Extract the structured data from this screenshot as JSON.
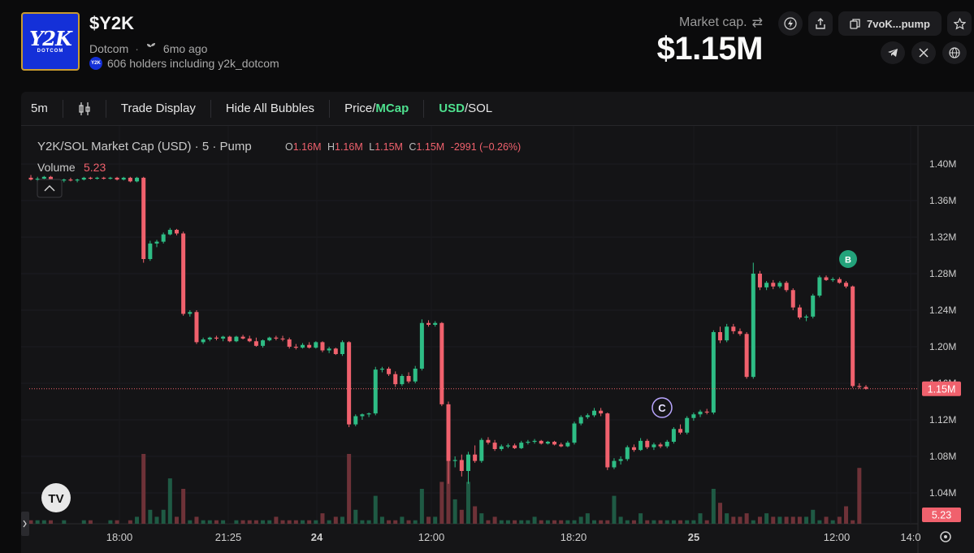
{
  "token": {
    "logo_text": "Y2K",
    "logo_subtext": "DOTCOM",
    "ticker": "$Y2K",
    "name": "Dotcom",
    "age": "6mo ago",
    "holders_text": "606 holders including y2k_dotcom"
  },
  "market": {
    "label": "Market cap.",
    "value": "$1.15M",
    "address": "7voK...pump"
  },
  "toolbar": {
    "interval": "5m",
    "trade_display": "Trade Display",
    "hide_bubbles": "Hide All Bubbles",
    "price_label": "Price",
    "mcap_label": "MCap",
    "usd_label": "USD",
    "sol_label": "SOL"
  },
  "legend": {
    "title": "Y2K/SOL Market Cap (USD) · 5 · Pump",
    "o_label": "O",
    "o_value": "1.16M",
    "h_label": "H",
    "h_value": "1.16M",
    "l_label": "L",
    "l_value": "1.15M",
    "c_label": "C",
    "c_value": "1.15M",
    "change": "-2991 (−0.26%)",
    "volume_label": "Volume",
    "volume_value": "5.23"
  },
  "colors": {
    "up": "#2ebd85",
    "down": "#f0616d",
    "accent_green": "#4ee08e"
  },
  "chart_data": {
    "type": "candlestick",
    "y_ticks": [
      "1.40M",
      "1.36M",
      "1.32M",
      "1.28M",
      "1.24M",
      "1.20M",
      "1.16M",
      "1.12M",
      "1.08M",
      "1.04M"
    ],
    "y_range_millions": [
      1.0,
      1.42
    ],
    "x_ticks": [
      "18:00",
      "21:25",
      "24",
      "12:00",
      "18:20",
      "25",
      "12:00",
      "14:0"
    ],
    "current_price_label": "1.15M",
    "current_volume_label": "5.23",
    "markers": [
      {
        "label": "C",
        "near_value_millions": 1.13
      },
      {
        "label": "B",
        "near_value_millions": 1.3
      }
    ],
    "candles_millions": [
      [
        1.385,
        1.388,
        1.382,
        1.383
      ],
      [
        1.383,
        1.386,
        1.38,
        1.384
      ],
      [
        1.384,
        1.387,
        1.383,
        1.386
      ],
      [
        1.386,
        1.387,
        1.38,
        1.38
      ],
      [
        1.38,
        1.383,
        1.378,
        1.382
      ],
      [
        1.382,
        1.384,
        1.38,
        1.383
      ],
      [
        1.383,
        1.385,
        1.381,
        1.382
      ],
      [
        1.382,
        1.384,
        1.38,
        1.383
      ],
      [
        1.383,
        1.386,
        1.382,
        1.385
      ],
      [
        1.385,
        1.386,
        1.383,
        1.384
      ],
      [
        1.384,
        1.386,
        1.383,
        1.385
      ],
      [
        1.385,
        1.386,
        1.383,
        1.384
      ],
      [
        1.384,
        1.386,
        1.383,
        1.385
      ],
      [
        1.385,
        1.386,
        1.382,
        1.383
      ],
      [
        1.383,
        1.386,
        1.382,
        1.385
      ],
      [
        1.385,
        1.386,
        1.38,
        1.381
      ],
      [
        1.381,
        1.386,
        1.38,
        1.385
      ],
      [
        1.385,
        1.386,
        1.292,
        1.296
      ],
      [
        1.296,
        1.316,
        1.294,
        1.313
      ],
      [
        1.313,
        1.317,
        1.309,
        1.315
      ],
      [
        1.315,
        1.325,
        1.313,
        1.323
      ],
      [
        1.323,
        1.33,
        1.322,
        1.328
      ],
      [
        1.328,
        1.329,
        1.322,
        1.324
      ],
      [
        1.324,
        1.326,
        1.234,
        1.236
      ],
      [
        1.236,
        1.24,
        1.233,
        1.238
      ],
      [
        1.238,
        1.24,
        1.203,
        1.205
      ],
      [
        1.205,
        1.21,
        1.203,
        1.208
      ],
      [
        1.208,
        1.211,
        1.206,
        1.21
      ],
      [
        1.21,
        1.212,
        1.207,
        1.209
      ],
      [
        1.209,
        1.212,
        1.206,
        1.211
      ],
      [
        1.211,
        1.212,
        1.205,
        1.206
      ],
      [
        1.206,
        1.212,
        1.205,
        1.211
      ],
      [
        1.211,
        1.213,
        1.208,
        1.209
      ],
      [
        1.209,
        1.212,
        1.205,
        1.206
      ],
      [
        1.206,
        1.21,
        1.2,
        1.201
      ],
      [
        1.201,
        1.208,
        1.199,
        1.207
      ],
      [
        1.207,
        1.211,
        1.206,
        1.21
      ],
      [
        1.21,
        1.212,
        1.207,
        1.209
      ],
      [
        1.209,
        1.212,
        1.206,
        1.208
      ],
      [
        1.208,
        1.21,
        1.198,
        1.2
      ],
      [
        1.2,
        1.203,
        1.197,
        1.199
      ],
      [
        1.199,
        1.204,
        1.198,
        1.202
      ],
      [
        1.202,
        1.205,
        1.198,
        1.199
      ],
      [
        1.199,
        1.206,
        1.198,
        1.205
      ],
      [
        1.205,
        1.206,
        1.194,
        1.196
      ],
      [
        1.196,
        1.2,
        1.193,
        1.198
      ],
      [
        1.198,
        1.199,
        1.191,
        1.192
      ],
      [
        1.192,
        1.207,
        1.19,
        1.205
      ],
      [
        1.205,
        1.206,
        1.112,
        1.115
      ],
      [
        1.115,
        1.126,
        1.113,
        1.124
      ],
      [
        1.124,
        1.127,
        1.12,
        1.126
      ],
      [
        1.126,
        1.128,
        1.123,
        1.127
      ],
      [
        1.127,
        1.178,
        1.125,
        1.175
      ],
      [
        1.175,
        1.178,
        1.172,
        1.176
      ],
      [
        1.176,
        1.178,
        1.168,
        1.17
      ],
      [
        1.17,
        1.173,
        1.156,
        1.159
      ],
      [
        1.159,
        1.17,
        1.157,
        1.168
      ],
      [
        1.168,
        1.172,
        1.16,
        1.162
      ],
      [
        1.162,
        1.179,
        1.16,
        1.176
      ],
      [
        1.176,
        1.23,
        1.174,
        1.226
      ],
      [
        1.226,
        1.229,
        1.222,
        1.224
      ],
      [
        1.224,
        1.228,
        1.222,
        1.226
      ],
      [
        1.226,
        1.227,
        1.135,
        1.137
      ],
      [
        1.137,
        1.14,
        1.05,
        1.075
      ],
      [
        1.075,
        1.08,
        1.068,
        1.076
      ],
      [
        1.076,
        1.082,
        1.058,
        1.064
      ],
      [
        1.064,
        1.085,
        1.05,
        1.082
      ],
      [
        1.082,
        1.092,
        1.073,
        1.075
      ],
      [
        1.075,
        1.1,
        1.073,
        1.098
      ],
      [
        1.098,
        1.101,
        1.093,
        1.095
      ],
      [
        1.095,
        1.098,
        1.086,
        1.088
      ],
      [
        1.088,
        1.093,
        1.086,
        1.091
      ],
      [
        1.091,
        1.094,
        1.089,
        1.092
      ],
      [
        1.092,
        1.094,
        1.088,
        1.089
      ],
      [
        1.089,
        1.097,
        1.088,
        1.095
      ],
      [
        1.095,
        1.098,
        1.093,
        1.096
      ],
      [
        1.096,
        1.099,
        1.094,
        1.097
      ],
      [
        1.097,
        1.098,
        1.093,
        1.094
      ],
      [
        1.094,
        1.097,
        1.093,
        1.096
      ],
      [
        1.096,
        1.097,
        1.092,
        1.093
      ],
      [
        1.093,
        1.095,
        1.09,
        1.091
      ],
      [
        1.091,
        1.097,
        1.09,
        1.095
      ],
      [
        1.095,
        1.118,
        1.093,
        1.116
      ],
      [
        1.116,
        1.125,
        1.114,
        1.123
      ],
      [
        1.123,
        1.127,
        1.121,
        1.125
      ],
      [
        1.125,
        1.133,
        1.123,
        1.13
      ],
      [
        1.13,
        1.133,
        1.124,
        1.127
      ],
      [
        1.127,
        1.128,
        1.065,
        1.068
      ],
      [
        1.068,
        1.078,
        1.066,
        1.075
      ],
      [
        1.075,
        1.08,
        1.071,
        1.077
      ],
      [
        1.077,
        1.092,
        1.075,
        1.09
      ],
      [
        1.09,
        1.093,
        1.085,
        1.087
      ],
      [
        1.087,
        1.1,
        1.086,
        1.097
      ],
      [
        1.097,
        1.099,
        1.088,
        1.09
      ],
      [
        1.09,
        1.095,
        1.087,
        1.093
      ],
      [
        1.093,
        1.095,
        1.089,
        1.091
      ],
      [
        1.091,
        1.098,
        1.089,
        1.096
      ],
      [
        1.096,
        1.112,
        1.094,
        1.11
      ],
      [
        1.11,
        1.115,
        1.104,
        1.106
      ],
      [
        1.106,
        1.124,
        1.104,
        1.122
      ],
      [
        1.122,
        1.128,
        1.119,
        1.126
      ],
      [
        1.126,
        1.131,
        1.123,
        1.129
      ],
      [
        1.129,
        1.132,
        1.126,
        1.128
      ],
      [
        1.128,
        1.218,
        1.126,
        1.216
      ],
      [
        1.216,
        1.222,
        1.204,
        1.207
      ],
      [
        1.207,
        1.225,
        1.205,
        1.222
      ],
      [
        1.222,
        1.225,
        1.214,
        1.217
      ],
      [
        1.217,
        1.22,
        1.212,
        1.214
      ],
      [
        1.214,
        1.216,
        1.165,
        1.167
      ],
      [
        1.167,
        1.292,
        1.165,
        1.28
      ],
      [
        1.28,
        1.283,
        1.262,
        1.265
      ],
      [
        1.265,
        1.272,
        1.262,
        1.27
      ],
      [
        1.27,
        1.273,
        1.263,
        1.266
      ],
      [
        1.266,
        1.272,
        1.264,
        1.27
      ],
      [
        1.27,
        1.272,
        1.26,
        1.262
      ],
      [
        1.262,
        1.264,
        1.24,
        1.243
      ],
      [
        1.243,
        1.246,
        1.23,
        1.232
      ],
      [
        1.232,
        1.235,
        1.228,
        1.233
      ],
      [
        1.233,
        1.258,
        1.231,
        1.256
      ],
      [
        1.256,
        1.278,
        1.254,
        1.276
      ],
      [
        1.276,
        1.278,
        1.272,
        1.273
      ],
      [
        1.273,
        1.276,
        1.271,
        1.274
      ],
      [
        1.274,
        1.276,
        1.269,
        1.27
      ],
      [
        1.27,
        1.272,
        1.264,
        1.266
      ],
      [
        1.266,
        1.267,
        1.155,
        1.157
      ],
      [
        1.157,
        1.16,
        1.154,
        1.156
      ],
      [
        1.156,
        1.158,
        1.153,
        1.154
      ]
    ],
    "volume_scale": [
      1,
      1,
      1,
      1,
      0,
      1,
      0,
      0,
      1,
      1,
      0,
      0,
      1,
      1,
      0,
      1,
      2,
      20,
      4,
      2,
      4,
      13,
      2,
      10,
      1,
      2,
      1,
      1,
      1,
      1,
      0,
      1,
      1,
      1,
      1,
      1,
      1,
      2,
      1,
      1,
      1,
      1,
      1,
      1,
      3,
      1,
      2,
      2,
      20,
      4,
      1,
      1,
      8,
      2,
      1,
      1,
      2,
      1,
      1,
      10,
      2,
      2,
      12,
      20,
      7,
      4,
      12,
      5,
      3,
      1,
      2,
      1,
      1,
      1,
      1,
      1,
      2,
      1,
      1,
      1,
      1,
      1,
      1,
      2,
      3,
      1,
      1,
      1,
      8,
      2,
      1,
      1,
      3,
      1,
      1,
      1,
      1,
      1,
      1,
      1,
      1,
      3,
      1,
      10,
      6,
      3,
      2,
      2,
      3,
      1,
      2,
      3,
      2,
      2,
      2,
      2,
      2,
      2,
      4,
      1,
      2,
      1,
      2,
      5,
      1,
      16,
      0,
      0
    ]
  }
}
